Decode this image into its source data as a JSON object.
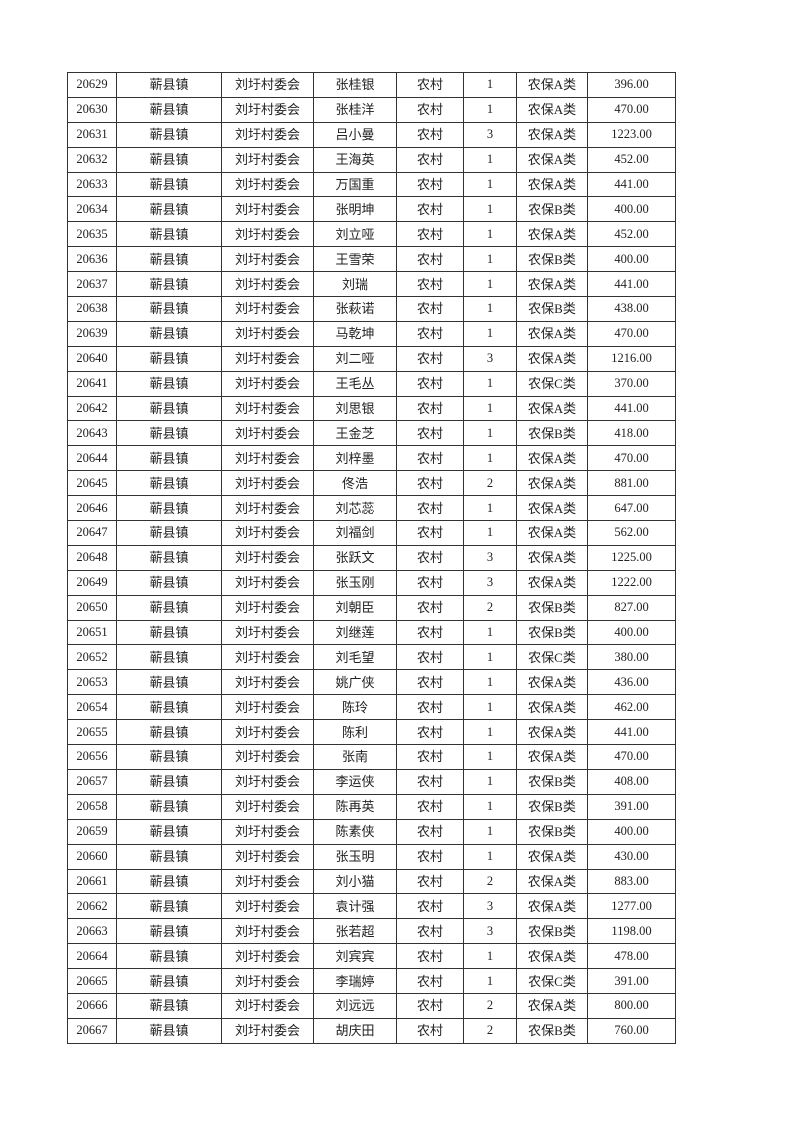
{
  "table": {
    "rows": [
      [
        "20629",
        "蕲县镇",
        "刘圩村委会",
        "张桂银",
        "农村",
        "1",
        "农保A类",
        "396.00"
      ],
      [
        "20630",
        "蕲县镇",
        "刘圩村委会",
        "张桂洋",
        "农村",
        "1",
        "农保A类",
        "470.00"
      ],
      [
        "20631",
        "蕲县镇",
        "刘圩村委会",
        "吕小曼",
        "农村",
        "3",
        "农保A类",
        "1223.00"
      ],
      [
        "20632",
        "蕲县镇",
        "刘圩村委会",
        "王海英",
        "农村",
        "1",
        "农保A类",
        "452.00"
      ],
      [
        "20633",
        "蕲县镇",
        "刘圩村委会",
        "万国重",
        "农村",
        "1",
        "农保A类",
        "441.00"
      ],
      [
        "20634",
        "蕲县镇",
        "刘圩村委会",
        "张明坤",
        "农村",
        "1",
        "农保B类",
        "400.00"
      ],
      [
        "20635",
        "蕲县镇",
        "刘圩村委会",
        "刘立哑",
        "农村",
        "1",
        "农保A类",
        "452.00"
      ],
      [
        "20636",
        "蕲县镇",
        "刘圩村委会",
        "王雪荣",
        "农村",
        "1",
        "农保B类",
        "400.00"
      ],
      [
        "20637",
        "蕲县镇",
        "刘圩村委会",
        "刘瑞",
        "农村",
        "1",
        "农保A类",
        "441.00"
      ],
      [
        "20638",
        "蕲县镇",
        "刘圩村委会",
        "张萩诺",
        "农村",
        "1",
        "农保B类",
        "438.00"
      ],
      [
        "20639",
        "蕲县镇",
        "刘圩村委会",
        "马乾坤",
        "农村",
        "1",
        "农保A类",
        "470.00"
      ],
      [
        "20640",
        "蕲县镇",
        "刘圩村委会",
        "刘二哑",
        "农村",
        "3",
        "农保A类",
        "1216.00"
      ],
      [
        "20641",
        "蕲县镇",
        "刘圩村委会",
        "王毛丛",
        "农村",
        "1",
        "农保C类",
        "370.00"
      ],
      [
        "20642",
        "蕲县镇",
        "刘圩村委会",
        "刘思银",
        "农村",
        "1",
        "农保A类",
        "441.00"
      ],
      [
        "20643",
        "蕲县镇",
        "刘圩村委会",
        "王金芝",
        "农村",
        "1",
        "农保B类",
        "418.00"
      ],
      [
        "20644",
        "蕲县镇",
        "刘圩村委会",
        "刘梓墨",
        "农村",
        "1",
        "农保A类",
        "470.00"
      ],
      [
        "20645",
        "蕲县镇",
        "刘圩村委会",
        "佟浩",
        "农村",
        "2",
        "农保A类",
        "881.00"
      ],
      [
        "20646",
        "蕲县镇",
        "刘圩村委会",
        "刘芯蕊",
        "农村",
        "1",
        "农保A类",
        "647.00"
      ],
      [
        "20647",
        "蕲县镇",
        "刘圩村委会",
        "刘福剑",
        "农村",
        "1",
        "农保A类",
        "562.00"
      ],
      [
        "20648",
        "蕲县镇",
        "刘圩村委会",
        "张跃文",
        "农村",
        "3",
        "农保A类",
        "1225.00"
      ],
      [
        "20649",
        "蕲县镇",
        "刘圩村委会",
        "张玉刚",
        "农村",
        "3",
        "农保A类",
        "1222.00"
      ],
      [
        "20650",
        "蕲县镇",
        "刘圩村委会",
        "刘朝臣",
        "农村",
        "2",
        "农保B类",
        "827.00"
      ],
      [
        "20651",
        "蕲县镇",
        "刘圩村委会",
        "刘继莲",
        "农村",
        "1",
        "农保B类",
        "400.00"
      ],
      [
        "20652",
        "蕲县镇",
        "刘圩村委会",
        "刘毛望",
        "农村",
        "1",
        "农保C类",
        "380.00"
      ],
      [
        "20653",
        "蕲县镇",
        "刘圩村委会",
        "姚广侠",
        "农村",
        "1",
        "农保A类",
        "436.00"
      ],
      [
        "20654",
        "蕲县镇",
        "刘圩村委会",
        "陈玲",
        "农村",
        "1",
        "农保A类",
        "462.00"
      ],
      [
        "20655",
        "蕲县镇",
        "刘圩村委会",
        "陈利",
        "农村",
        "1",
        "农保A类",
        "441.00"
      ],
      [
        "20656",
        "蕲县镇",
        "刘圩村委会",
        "张南",
        "农村",
        "1",
        "农保A类",
        "470.00"
      ],
      [
        "20657",
        "蕲县镇",
        "刘圩村委会",
        "李运侠",
        "农村",
        "1",
        "农保B类",
        "408.00"
      ],
      [
        "20658",
        "蕲县镇",
        "刘圩村委会",
        "陈再英",
        "农村",
        "1",
        "农保B类",
        "391.00"
      ],
      [
        "20659",
        "蕲县镇",
        "刘圩村委会",
        "陈素侠",
        "农村",
        "1",
        "农保B类",
        "400.00"
      ],
      [
        "20660",
        "蕲县镇",
        "刘圩村委会",
        "张玉明",
        "农村",
        "1",
        "农保A类",
        "430.00"
      ],
      [
        "20661",
        "蕲县镇",
        "刘圩村委会",
        "刘小猫",
        "农村",
        "2",
        "农保A类",
        "883.00"
      ],
      [
        "20662",
        "蕲县镇",
        "刘圩村委会",
        "袁计强",
        "农村",
        "3",
        "农保A类",
        "1277.00"
      ],
      [
        "20663",
        "蕲县镇",
        "刘圩村委会",
        "张若超",
        "农村",
        "3",
        "农保B类",
        "1198.00"
      ],
      [
        "20664",
        "蕲县镇",
        "刘圩村委会",
        "刘宾宾",
        "农村",
        "1",
        "农保A类",
        "478.00"
      ],
      [
        "20665",
        "蕲县镇",
        "刘圩村委会",
        "李瑞婷",
        "农村",
        "1",
        "农保C类",
        "391.00"
      ],
      [
        "20666",
        "蕲县镇",
        "刘圩村委会",
        "刘远远",
        "农村",
        "2",
        "农保A类",
        "800.00"
      ],
      [
        "20667",
        "蕲县镇",
        "刘圩村委会",
        "胡庆田",
        "农村",
        "2",
        "农保B类",
        "760.00"
      ]
    ]
  }
}
